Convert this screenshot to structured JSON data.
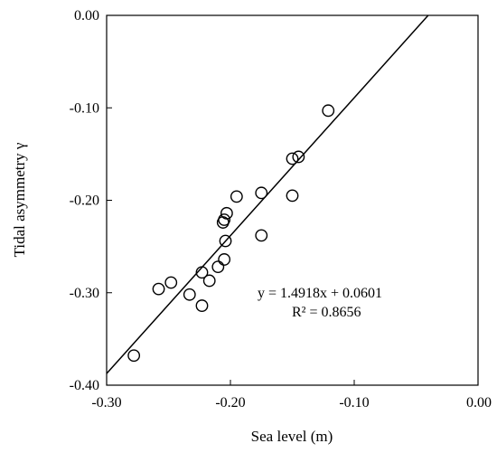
{
  "chart_data": {
    "type": "scatter",
    "title": "",
    "xlabel": "Sea level (m)",
    "ylabel": "Tidal asymmetry γ",
    "xlim": [
      -0.3,
      0.0
    ],
    "ylim": [
      -0.4,
      0.0
    ],
    "xticks": [
      -0.3,
      -0.2,
      -0.1,
      0.0
    ],
    "yticks": [
      0.0,
      -0.1,
      -0.2,
      -0.3,
      -0.4
    ],
    "xtick_labels": [
      "-0.30",
      "-0.20",
      "-0.10",
      "0.00"
    ],
    "ytick_labels": [
      "0.00",
      "-0.10",
      "-0.20",
      "-0.30",
      "-0.40"
    ],
    "grid": false,
    "marker": "open-circle",
    "colors": {
      "marker": "#000000",
      "line": "#000000",
      "axes": "#000000",
      "background": "#ffffff"
    },
    "points": [
      {
        "x": -0.278,
        "y": -0.368
      },
      {
        "x": -0.258,
        "y": -0.296
      },
      {
        "x": -0.248,
        "y": -0.289
      },
      {
        "x": -0.233,
        "y": -0.302
      },
      {
        "x": -0.223,
        "y": -0.278
      },
      {
        "x": -0.223,
        "y": -0.314
      },
      {
        "x": -0.217,
        "y": -0.287
      },
      {
        "x": -0.21,
        "y": -0.272
      },
      {
        "x": -0.205,
        "y": -0.264
      },
      {
        "x": -0.204,
        "y": -0.244
      },
      {
        "x": -0.206,
        "y": -0.224
      },
      {
        "x": -0.205,
        "y": -0.221
      },
      {
        "x": -0.203,
        "y": -0.214
      },
      {
        "x": -0.195,
        "y": -0.196
      },
      {
        "x": -0.175,
        "y": -0.192
      },
      {
        "x": -0.175,
        "y": -0.238
      },
      {
        "x": -0.15,
        "y": -0.195
      },
      {
        "x": -0.15,
        "y": -0.155
      },
      {
        "x": -0.145,
        "y": -0.153
      },
      {
        "x": -0.121,
        "y": -0.103
      }
    ],
    "trendline": {
      "slope": 1.4918,
      "intercept": 0.0601,
      "equation": "y = 1.4918x + 0.0601",
      "r_squared": "R² = 0.8656"
    }
  }
}
